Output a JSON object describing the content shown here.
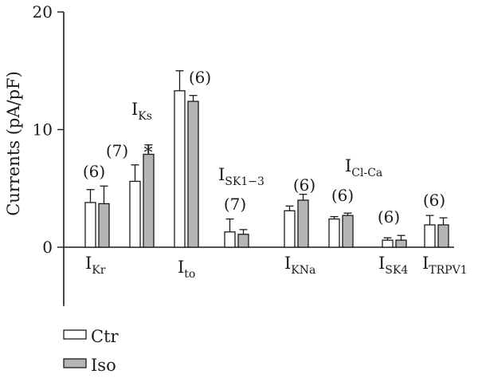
{
  "chart_data": {
    "type": "bar",
    "ylabel": "Currents (pA/pF)",
    "ylim": [
      -5,
      20
    ],
    "yticks": [
      0,
      10,
      20
    ],
    "grid": false,
    "legend_placement": "bottom-left",
    "series": [
      {
        "name": "Ctr",
        "color": "#ffffff",
        "values": [
          3.8,
          5.6,
          13.3,
          1.3,
          3.1,
          2.4,
          0.6,
          1.9
        ],
        "errors": [
          1.1,
          1.4,
          1.7,
          1.1,
          0.4,
          0.2,
          0.2,
          0.8
        ]
      },
      {
        "name": "Iso",
        "color": "#b5b5b5",
        "values": [
          3.7,
          7.9,
          12.4,
          1.1,
          4.0,
          2.7,
          0.6,
          1.9
        ],
        "errors": [
          1.5,
          0.8,
          0.5,
          0.4,
          0.5,
          0.2,
          0.4,
          0.6
        ]
      }
    ],
    "categories": [
      {
        "base": "I",
        "sub": "Kr",
        "n": "(6)",
        "star": ""
      },
      {
        "base": "I",
        "sub": "Ks",
        "n": "(7)",
        "star": "*"
      },
      {
        "base": "I",
        "sub": "to",
        "n": "(6)",
        "star": ""
      },
      {
        "base": "I",
        "sub": "SK1−3",
        "n": "(7)",
        "star": ""
      },
      {
        "base": "I",
        "sub": "KNa",
        "n": "(6)",
        "star": ""
      },
      {
        "base": "I",
        "sub": "Cl-Ca",
        "n": "(6)",
        "star": ""
      },
      {
        "base": "I",
        "sub": "SK4",
        "n": "(6)",
        "star": ""
      },
      {
        "base": "I",
        "sub": "TRPV1",
        "n": "(6)",
        "star": ""
      }
    ]
  }
}
